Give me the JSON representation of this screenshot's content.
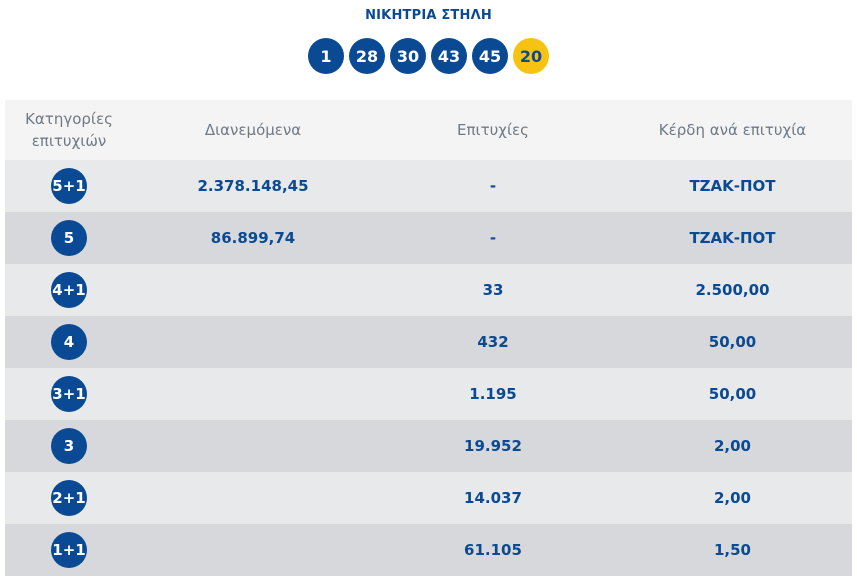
{
  "header": {
    "title": "ΝΙΚΗΤΡΙΑ ΣΤΗΛΗ"
  },
  "winning_numbers": [
    "1",
    "28",
    "30",
    "43",
    "45"
  ],
  "joker": "20",
  "colors": {
    "primary": "#0a4a94",
    "joker": "#f7c313"
  },
  "table": {
    "columns": [
      "Κατηγορίες επιτυχιών",
      "Διανεμόμενα",
      "Επιτυχίες",
      "Κέρδη ανά επιτυχία"
    ],
    "column_category_lines": [
      "Κατηγορίες",
      "επιτυχιών"
    ],
    "rows": [
      {
        "category": "5+1",
        "distributed": "2.378.148,45",
        "winners": "-",
        "prize": "ΤΖΑΚ-ΠΟΤ"
      },
      {
        "category": "5",
        "distributed": "86.899,74",
        "winners": "-",
        "prize": "ΤΖΑΚ-ΠΟΤ"
      },
      {
        "category": "4+1",
        "distributed": "",
        "winners": "33",
        "prize": "2.500,00"
      },
      {
        "category": "4",
        "distributed": "",
        "winners": "432",
        "prize": "50,00"
      },
      {
        "category": "3+1",
        "distributed": "",
        "winners": "1.195",
        "prize": "50,00"
      },
      {
        "category": "3",
        "distributed": "",
        "winners": "19.952",
        "prize": "2,00"
      },
      {
        "category": "2+1",
        "distributed": "",
        "winners": "14.037",
        "prize": "2,00"
      },
      {
        "category": "1+1",
        "distributed": "",
        "winners": "61.105",
        "prize": "1,50"
      }
    ]
  }
}
